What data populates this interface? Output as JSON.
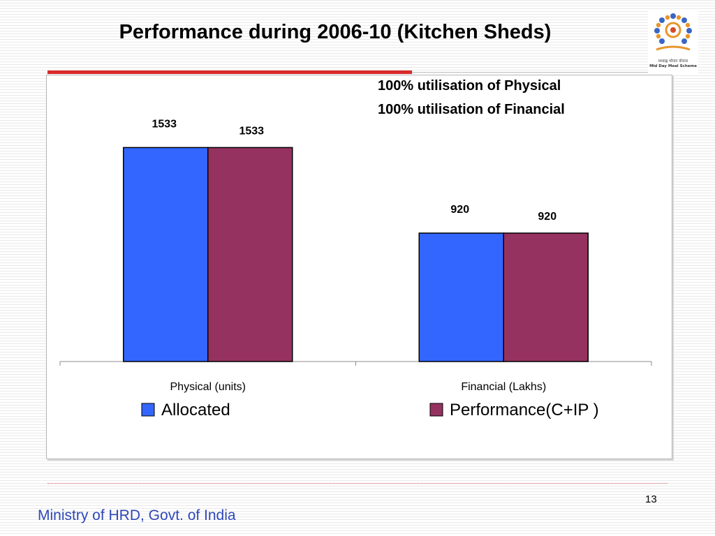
{
  "slide": {
    "title": "Performance during 2006-10 (Kitchen Sheds)",
    "annotations": [
      "100% utilisation of Physical",
      "100% utilisation of Financial"
    ],
    "page_number": "13",
    "footer": "Ministry of HRD, Govt. of India",
    "logo_text": [
      "मध्याह्न भोजन योजना",
      "Mid Day Meal Scheme"
    ]
  },
  "chart_data": {
    "type": "bar",
    "title": "",
    "xlabel": "",
    "ylabel": "",
    "categories": [
      "Physical (units)",
      "Financial (Lakhs)"
    ],
    "series": [
      {
        "name": "Allocated",
        "values": [
          1533,
          920
        ],
        "color": "#3366ff"
      },
      {
        "name": "Performance(C+IP )",
        "values": [
          1533,
          920
        ],
        "color": "#953260"
      }
    ],
    "ylim": [
      0,
      2000
    ],
    "grid": false,
    "legend_position": "bottom"
  }
}
